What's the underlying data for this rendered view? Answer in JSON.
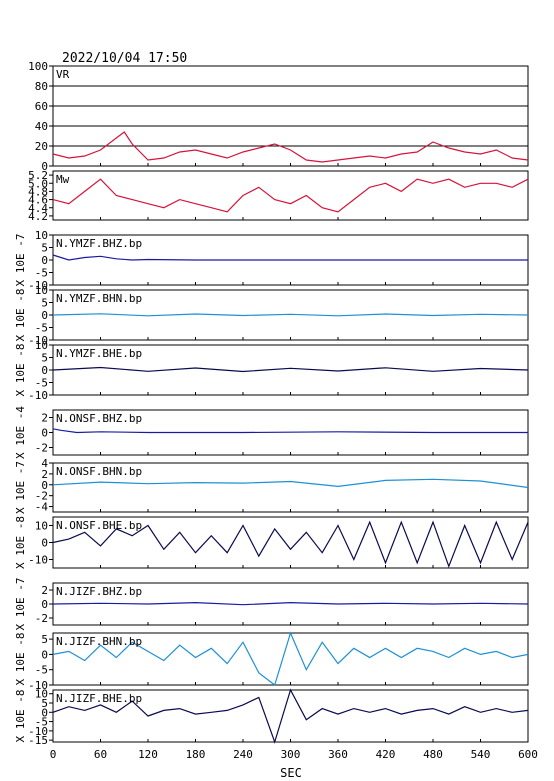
{
  "header": {
    "timestamp": "2022/10/04  17:50"
  },
  "colors": {
    "vr": "#d4143c",
    "mw": "#d4143c",
    "bhz": "#1a1aa6",
    "bhn": "#1e90d6",
    "bhe": "#0a0a50",
    "frame": "#000000"
  },
  "chart_data": {
    "type": "line",
    "xlabel": "SEC",
    "xlim": [
      0,
      600
    ],
    "xticks": [
      "0",
      "60",
      "120",
      "180",
      "240",
      "300",
      "360",
      "420",
      "480",
      "540",
      "600"
    ],
    "panels": [
      {
        "id": "vr",
        "label": "VR",
        "color": "vr",
        "ylim": [
          0,
          100
        ],
        "yticks": [
          "100",
          "80",
          "60",
          "40",
          "20",
          "0"
        ],
        "yscale": "",
        "grid": true,
        "x": [
          0,
          20,
          40,
          60,
          80,
          90,
          100,
          120,
          140,
          160,
          180,
          200,
          220,
          240,
          260,
          280,
          300,
          320,
          340,
          360,
          380,
          400,
          420,
          440,
          460,
          480,
          500,
          520,
          540,
          560,
          580,
          600
        ],
        "y": [
          12,
          8,
          10,
          16,
          28,
          34,
          22,
          6,
          8,
          14,
          16,
          12,
          8,
          14,
          18,
          22,
          16,
          6,
          4,
          6,
          8,
          10,
          8,
          12,
          14,
          24,
          18,
          14,
          12,
          16,
          8,
          6
        ]
      },
      {
        "id": "mw",
        "label": "Mw",
        "color": "mw",
        "ylim": [
          4.1,
          5.3
        ],
        "yticks": [
          "5.2",
          "5.0",
          "4.8",
          "4.6",
          "4.4",
          "4.2"
        ],
        "yscale": "",
        "x": [
          0,
          20,
          40,
          60,
          80,
          100,
          120,
          140,
          160,
          180,
          200,
          220,
          240,
          260,
          280,
          300,
          320,
          340,
          360,
          380,
          400,
          420,
          440,
          460,
          480,
          500,
          520,
          540,
          560,
          580,
          600
        ],
        "y": [
          4.6,
          4.5,
          4.8,
          5.1,
          4.7,
          4.6,
          4.5,
          4.4,
          4.6,
          4.5,
          4.4,
          4.3,
          4.7,
          4.9,
          4.6,
          4.5,
          4.7,
          4.4,
          4.3,
          4.6,
          4.9,
          5.0,
          4.8,
          5.1,
          5.0,
          5.1,
          4.9,
          5.0,
          5.0,
          4.9,
          5.1
        ]
      },
      {
        "id": "ymzf_bhz",
        "label": "N.YMZF.BHZ.bp",
        "color": "bhz",
        "ylim": [
          -10,
          10
        ],
        "yticks": [
          "10",
          "5",
          "0",
          "-5",
          "-10"
        ],
        "yscale": "X 10E -7",
        "x": [
          0,
          10,
          20,
          40,
          60,
          80,
          100,
          120,
          180,
          300,
          420,
          600
        ],
        "y": [
          2,
          1,
          0,
          1,
          1.5,
          0.5,
          0,
          0.2,
          0,
          0,
          0,
          0
        ]
      },
      {
        "id": "ymzf_bhn",
        "label": "N.YMZF.BHN.bp",
        "color": "bhn",
        "ylim": [
          -10,
          10
        ],
        "yticks": [
          "10",
          "5",
          "0",
          "-5",
          "-10"
        ],
        "yscale": "X 10E -8",
        "x": [
          0,
          60,
          120,
          180,
          240,
          300,
          360,
          420,
          480,
          540,
          600
        ],
        "y": [
          0,
          0.5,
          -0.3,
          0.4,
          -0.2,
          0.3,
          -0.3,
          0.4,
          -0.2,
          0.3,
          0
        ]
      },
      {
        "id": "ymzf_bhe",
        "label": "N.YMZF.BHE.bp",
        "color": "bhe",
        "ylim": [
          -10,
          10
        ],
        "yticks": [
          "10",
          "5",
          "0",
          "-5",
          "-10"
        ],
        "yscale": "X 10E -8",
        "x": [
          0,
          60,
          120,
          180,
          240,
          300,
          360,
          420,
          480,
          540,
          600
        ],
        "y": [
          0,
          1,
          -0.5,
          0.8,
          -0.6,
          0.7,
          -0.4,
          0.9,
          -0.5,
          0.6,
          0
        ]
      },
      {
        "id": "onsf_bhz",
        "label": "N.ONSF.BHZ.bp",
        "color": "bhz",
        "ylim": [
          -3,
          3
        ],
        "yticks": [
          "2",
          "0",
          "-2"
        ],
        "yscale": "X 10E -4",
        "x": [
          0,
          10,
          30,
          60,
          120,
          240,
          360,
          480,
          600
        ],
        "y": [
          0.5,
          0.3,
          0,
          0.1,
          0,
          0,
          0.1,
          0,
          0
        ]
      },
      {
        "id": "onsf_bhn",
        "label": "N.ONSF.BHN.bp",
        "color": "bhn",
        "ylim": [
          -5,
          4
        ],
        "yticks": [
          "4",
          "2",
          "0",
          "-2",
          "-4"
        ],
        "yscale": "X 10E -7",
        "x": [
          0,
          60,
          120,
          180,
          240,
          300,
          360,
          420,
          480,
          540,
          600
        ],
        "y": [
          0,
          0.5,
          0.2,
          0.4,
          0.3,
          0.6,
          -0.3,
          0.8,
          1.0,
          0.7,
          -0.5
        ]
      },
      {
        "id": "onsf_bhe",
        "label": "N.ONSF.BHE.bp",
        "color": "bhe",
        "ylim": [
          -15,
          15
        ],
        "yticks": [
          "10",
          "0",
          "-10"
        ],
        "yscale": "X 10E -8",
        "x": [
          0,
          20,
          40,
          60,
          80,
          100,
          120,
          140,
          160,
          180,
          200,
          220,
          240,
          260,
          280,
          300,
          320,
          340,
          360,
          380,
          400,
          420,
          440,
          460,
          480,
          500,
          520,
          540,
          560,
          580,
          600
        ],
        "y": [
          0,
          2,
          6,
          -2,
          8,
          4,
          10,
          -4,
          6,
          -6,
          4,
          -6,
          10,
          -8,
          8,
          -4,
          6,
          -6,
          10,
          -10,
          12,
          -12,
          12,
          -12,
          12,
          -14,
          10,
          -12,
          12,
          -10,
          12
        ]
      },
      {
        "id": "jizf_bhz",
        "label": "N.JIZF.BHZ.bp",
        "color": "bhz",
        "ylim": [
          -3,
          3
        ],
        "yticks": [
          "2",
          "0",
          "-2"
        ],
        "yscale": "X 10E -7",
        "x": [
          0,
          60,
          120,
          180,
          240,
          300,
          360,
          420,
          480,
          540,
          600
        ],
        "y": [
          0,
          0.1,
          0,
          0.2,
          -0.1,
          0.2,
          0,
          0.1,
          0,
          0.1,
          0
        ]
      },
      {
        "id": "jizf_bhn",
        "label": "N.JIZF.BHN.bp",
        "color": "bhn",
        "ylim": [
          -10,
          7
        ],
        "yticks": [
          "5",
          "0",
          "-5",
          "-10"
        ],
        "yscale": "X 10E -8",
        "x": [
          0,
          20,
          40,
          60,
          80,
          100,
          120,
          140,
          160,
          180,
          200,
          220,
          240,
          260,
          280,
          300,
          320,
          340,
          360,
          380,
          400,
          420,
          440,
          460,
          480,
          500,
          520,
          540,
          560,
          580,
          600
        ],
        "y": [
          0,
          1,
          -2,
          3,
          -1,
          4,
          1,
          -2,
          3,
          -1,
          2,
          -3,
          4,
          -6,
          -10,
          7,
          -5,
          4,
          -3,
          2,
          -1,
          2,
          -1,
          2,
          1,
          -1,
          2,
          0,
          1,
          -1,
          0
        ]
      },
      {
        "id": "jizf_bhe",
        "label": "N.JIZF.BHE.bp",
        "color": "bhe",
        "ylim": [
          -16,
          12
        ],
        "yticks": [
          "10",
          "5",
          "0",
          "-5",
          "-10",
          "-15"
        ],
        "yscale": "X 10E -8",
        "x": [
          0,
          20,
          40,
          60,
          80,
          100,
          120,
          140,
          160,
          180,
          200,
          220,
          240,
          260,
          280,
          300,
          320,
          340,
          360,
          380,
          400,
          420,
          440,
          460,
          480,
          500,
          520,
          540,
          560,
          580,
          600
        ],
        "y": [
          0,
          3,
          1,
          4,
          0,
          6,
          -2,
          1,
          2,
          -1,
          0,
          1,
          4,
          8,
          -16,
          12,
          -4,
          2,
          -1,
          2,
          0,
          2,
          -1,
          1,
          2,
          -1,
          3,
          0,
          2,
          0,
          1
        ]
      }
    ]
  }
}
